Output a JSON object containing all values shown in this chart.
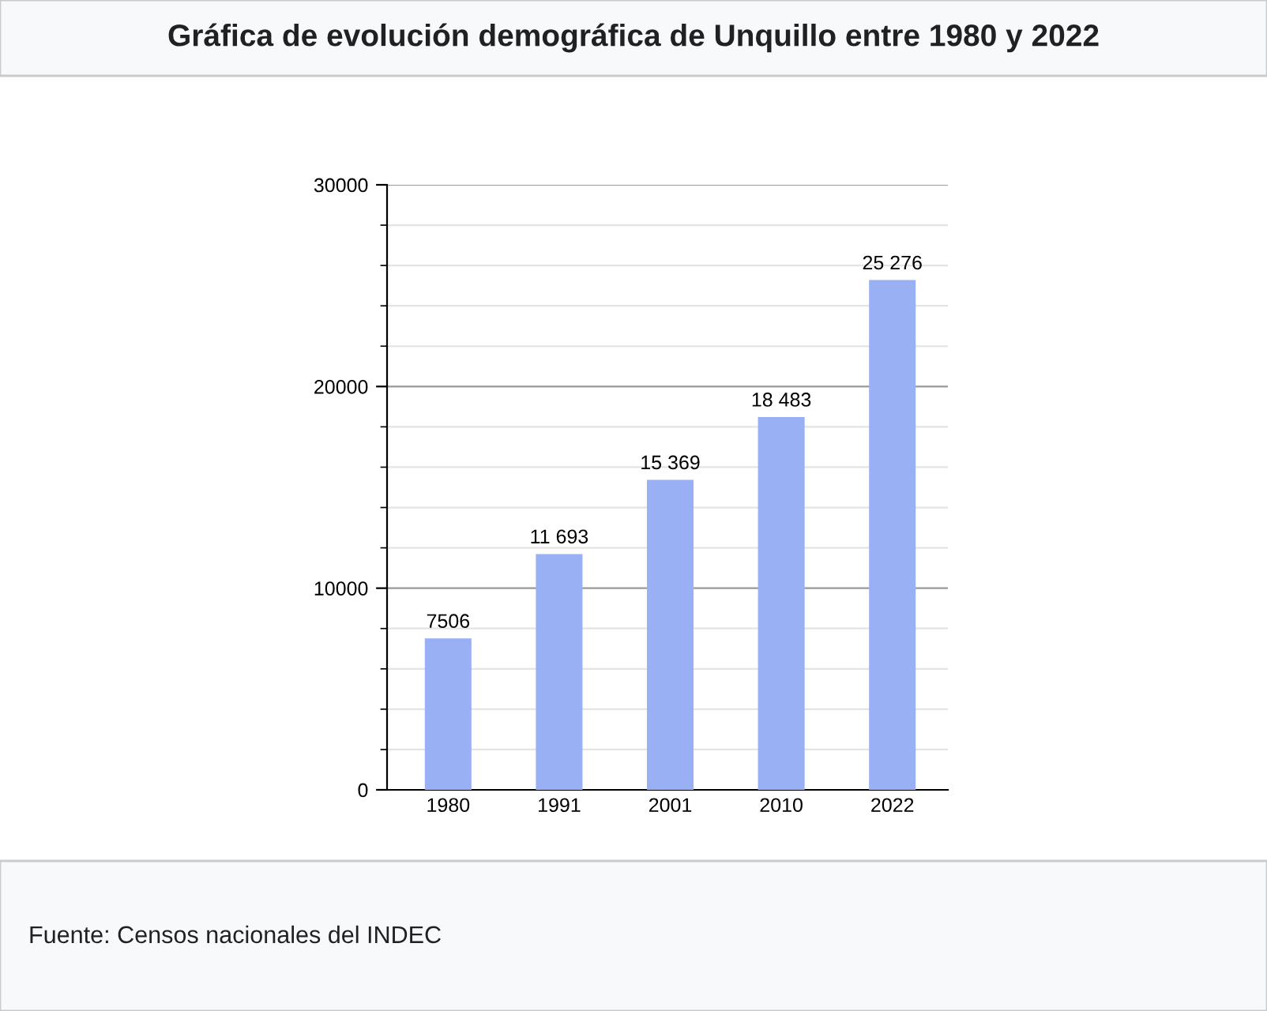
{
  "chart_data": {
    "type": "bar",
    "title": "Gráfica de evolución demográfica de Unquillo entre 1980 y 2022",
    "categories": [
      "1980",
      "1991",
      "2001",
      "2010",
      "2022"
    ],
    "values": [
      7506,
      11693,
      15369,
      18483,
      25276
    ],
    "value_labels": [
      "7506",
      "11 693",
      "15 369",
      "18 483",
      "25 276"
    ],
    "color": "#99b0f5",
    "ylim": [
      0,
      30000
    ],
    "yticks": [
      0,
      10000,
      20000,
      30000
    ],
    "grid": "y",
    "legend": false,
    "annotations": [
      "Fuente: Censos nacionales del INDEC"
    ]
  }
}
